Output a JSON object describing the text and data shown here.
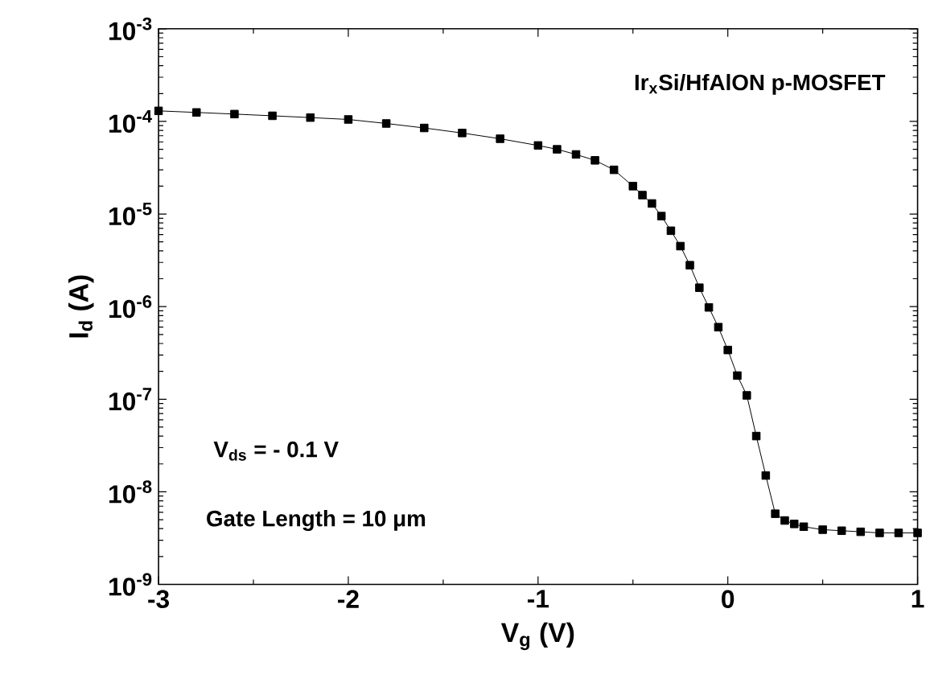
{
  "chart_data": {
    "type": "line",
    "xlabel": "V$_{g}$ (V)",
    "ylabel": "I$_{d}$ (A)",
    "annotations": [
      "Ir$_{x}$Si/HfAlON p-MOSFET",
      "V$_{ds}$ = - 0.1 V",
      "Gate Length = 10 μm"
    ],
    "log": "y",
    "marker": "square",
    "line_style": "solid",
    "xlim": [
      -3,
      1
    ],
    "xticks": [
      -3,
      -2,
      -1,
      0,
      1
    ],
    "ylim": [
      1e-09,
      0.001
    ],
    "yticks": [
      {
        "value": 1e-09,
        "label": "10$^{-9}$"
      },
      {
        "value": 1e-08,
        "label": "10$^{-8}$"
      },
      {
        "value": 1e-07,
        "label": "10$^{-7}$"
      },
      {
        "value": 1e-06,
        "label": "10$^{-6}$"
      },
      {
        "value": 1e-05,
        "label": "10$^{-5}$"
      },
      {
        "value": 0.0001,
        "label": "10$^{-4}$"
      },
      {
        "value": 0.001,
        "label": "10$^{-3}$"
      }
    ],
    "series": [
      {
        "color": "#000000",
        "x": [
          -3.0,
          -2.8,
          -2.6,
          -2.4,
          -2.2,
          -2.0,
          -1.8,
          -1.6,
          -1.4,
          -1.2,
          -1.0,
          -0.9,
          -0.8,
          -0.7,
          -0.6,
          -0.5,
          -0.45,
          -0.4,
          -0.35,
          -0.3,
          -0.25,
          -0.2,
          -0.15,
          -0.1,
          -0.05,
          0.0,
          0.05,
          0.1,
          0.15,
          0.2,
          0.25,
          0.3,
          0.35,
          0.4,
          0.5,
          0.6,
          0.7,
          0.8,
          0.9,
          1.0
        ],
        "values": [
          0.00013,
          0.000125,
          0.00012,
          0.000115,
          0.00011,
          0.000105,
          9.5e-05,
          8.5e-05,
          7.5e-05,
          6.5e-05,
          5.5e-05,
          5e-05,
          4.4e-05,
          3.8e-05,
          3e-05,
          2e-05,
          1.6e-05,
          1.3e-05,
          9.5e-06,
          6.6e-06,
          4.5e-06,
          2.8e-06,
          1.6e-06,
          9.8e-07,
          6e-07,
          3.4e-07,
          1.8e-07,
          1.1e-07,
          4e-08,
          1.5e-08,
          5.8e-09,
          4.9e-09,
          4.5e-09,
          4.2e-09,
          3.9e-09,
          3.8e-09,
          3.7e-09,
          3.6e-09,
          3.6e-09,
          3.6e-09
        ]
      }
    ]
  }
}
